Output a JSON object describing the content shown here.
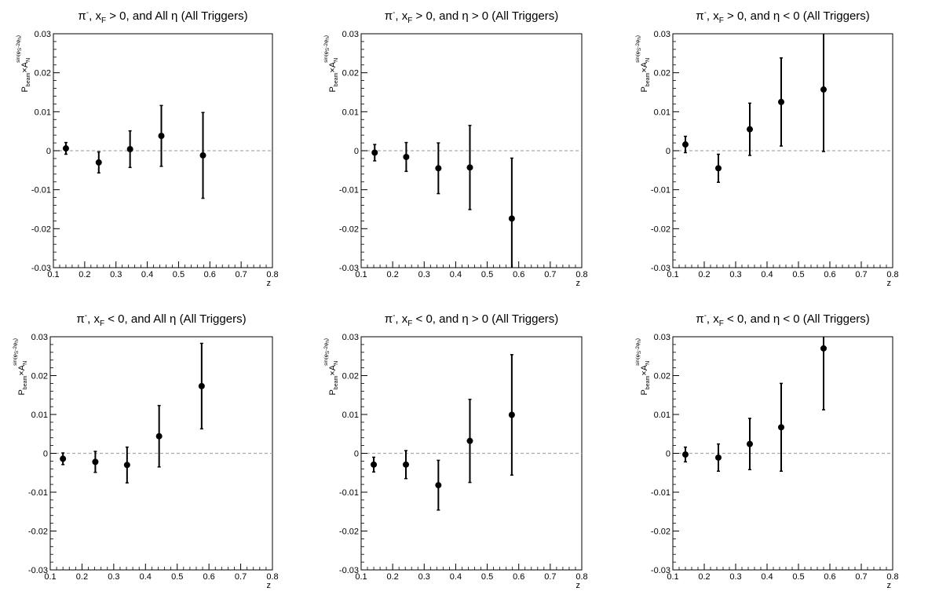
{
  "chart_data": [
    {
      "type": "scatter",
      "title_base": "π",
      "title_sup": "-",
      "title_mid": ", x",
      "title_sub": "F",
      "title_tail": " > 0, and All η (All Triggers)",
      "xlabel": "z",
      "ylabel": {
        "p": "P",
        "beam": "beam",
        "times": "×A",
        "n": "N",
        "sup": "sin(φ",
        "sup_s": "S",
        "sup_mid": "-2φ",
        "sup_h": "h",
        "sup_end": ")"
      },
      "xlim": [
        0.1,
        0.8
      ],
      "ylim": [
        -0.03,
        0.03
      ],
      "x_ticks": [
        "0.1",
        "0.2",
        "0.3",
        "0.4",
        "0.5",
        "0.6",
        "0.7",
        "0.8"
      ],
      "y_ticks": [
        "-0.03",
        "-0.02",
        "-0.01",
        "0",
        "0.01",
        "0.02",
        "0.03"
      ],
      "reference_line": 0,
      "x": [
        0.14,
        0.245,
        0.345,
        0.445,
        0.578
      ],
      "y": [
        0.0006,
        -0.003,
        0.0004,
        0.0038,
        -0.0012
      ],
      "yerr": [
        0.0015,
        0.0027,
        0.0047,
        0.0078,
        0.011
      ]
    },
    {
      "type": "scatter",
      "title_base": "π",
      "title_sup": "-",
      "title_mid": ", x",
      "title_sub": "F",
      "title_tail": " > 0, and η > 0 (All Triggers)",
      "xlabel": "z",
      "ylabel": {
        "p": "P",
        "beam": "beam",
        "times": "×A",
        "n": "N",
        "sup": "sin(φ",
        "sup_s": "S",
        "sup_mid": "-2φ",
        "sup_h": "h",
        "sup_end": ")"
      },
      "xlim": [
        0.1,
        0.8
      ],
      "ylim": [
        -0.03,
        0.03
      ],
      "x_ticks": [
        "0.1",
        "0.2",
        "0.3",
        "0.4",
        "0.5",
        "0.6",
        "0.7",
        "0.8"
      ],
      "y_ticks": [
        "-0.03",
        "-0.02",
        "-0.01",
        "0",
        "0.01",
        "0.02",
        "0.03"
      ],
      "reference_line": 0,
      "x": [
        0.143,
        0.243,
        0.345,
        0.445,
        0.578
      ],
      "y": [
        -0.0005,
        -0.0016,
        -0.0045,
        -0.0043,
        -0.0174
      ],
      "yerr": [
        0.0021,
        0.0037,
        0.0065,
        0.0108,
        0.0155
      ]
    },
    {
      "type": "scatter",
      "title_base": "π",
      "title_sup": "-",
      "title_mid": ", x",
      "title_sub": "F",
      "title_tail": " > 0, and η < 0 (All Triggers)",
      "xlabel": "z",
      "ylabel": {
        "p": "P",
        "beam": "beam",
        "times": "×A",
        "n": "N",
        "sup": "sin(φ",
        "sup_s": "S",
        "sup_mid": "-2φ",
        "sup_h": "h",
        "sup_end": ")"
      },
      "xlim": [
        0.1,
        0.8
      ],
      "ylim": [
        -0.03,
        0.03
      ],
      "x_ticks": [
        "0.1",
        "0.2",
        "0.3",
        "0.4",
        "0.5",
        "0.6",
        "0.7",
        "0.8"
      ],
      "y_ticks": [
        "-0.03",
        "-0.02",
        "-0.01",
        "0",
        "0.01",
        "0.02",
        "0.03"
      ],
      "reference_line": 0,
      "x": [
        0.14,
        0.245,
        0.345,
        0.445,
        0.58
      ],
      "y": [
        0.0016,
        -0.0045,
        0.0055,
        0.0125,
        0.0157
      ],
      "yerr": [
        0.0021,
        0.0036,
        0.0067,
        0.0113,
        0.0159
      ]
    },
    {
      "type": "scatter",
      "title_base": "π",
      "title_sup": "-",
      "title_mid": ", x",
      "title_sub": "F",
      "title_tail": " < 0, and All η (All Triggers)",
      "xlabel": "z",
      "ylabel": {
        "p": "P",
        "beam": "beam",
        "times": "×A",
        "n": "N",
        "sup": "sin(φ",
        "sup_s": "S",
        "sup_mid": "-2φ",
        "sup_h": "h",
        "sup_end": ")"
      },
      "xlim": [
        0.1,
        0.8
      ],
      "ylim": [
        -0.03,
        0.03
      ],
      "x_ticks": [
        "0.1",
        "0.2",
        "0.3",
        "0.4",
        "0.5",
        "0.6",
        "0.7",
        "0.8"
      ],
      "y_ticks": [
        "-0.03",
        "-0.02",
        "-0.01",
        "0",
        "0.01",
        "0.02",
        "0.03"
      ],
      "reference_line": 0,
      "x": [
        0.14,
        0.242,
        0.342,
        0.443,
        0.577
      ],
      "y": [
        -0.0014,
        -0.0022,
        -0.003,
        0.0044,
        0.0173
      ],
      "yerr": [
        0.0015,
        0.0027,
        0.0046,
        0.0079,
        0.011
      ]
    },
    {
      "type": "scatter",
      "title_base": "π",
      "title_sup": "-",
      "title_mid": ", x",
      "title_sub": "F",
      "title_tail": " < 0, and η > 0 (All Triggers)",
      "xlabel": "z",
      "ylabel": {
        "p": "P",
        "beam": "beam",
        "times": "×A",
        "n": "N",
        "sup": "sin(φ",
        "sup_s": "S",
        "sup_mid": "-2φ",
        "sup_h": "h",
        "sup_end": ")"
      },
      "xlim": [
        0.1,
        0.8
      ],
      "ylim": [
        -0.03,
        0.03
      ],
      "x_ticks": [
        "0.1",
        "0.2",
        "0.3",
        "0.4",
        "0.5",
        "0.6",
        "0.7",
        "0.8"
      ],
      "y_ticks": [
        "-0.03",
        "-0.02",
        "-0.01",
        "0",
        "0.01",
        "0.02",
        "0.03"
      ],
      "reference_line": 0,
      "x": [
        0.14,
        0.242,
        0.345,
        0.445,
        0.578
      ],
      "y": [
        -0.0029,
        -0.0029,
        -0.0082,
        0.0032,
        0.0099
      ],
      "yerr": [
        0.0019,
        0.0036,
        0.0064,
        0.0107,
        0.0155
      ]
    },
    {
      "type": "scatter",
      "title_base": "π",
      "title_sup": "-",
      "title_mid": ", x",
      "title_sub": "F",
      "title_tail": " < 0, and η < 0 (All Triggers)",
      "xlabel": "z",
      "ylabel": {
        "p": "P",
        "beam": "beam",
        "times": "×A",
        "n": "N",
        "sup": "sin(φ",
        "sup_s": "S",
        "sup_mid": "-2φ",
        "sup_h": "h",
        "sup_end": ")"
      },
      "xlim": [
        0.1,
        0.8
      ],
      "ylim": [
        -0.03,
        0.03
      ],
      "x_ticks": [
        "0.1",
        "0.2",
        "0.3",
        "0.4",
        "0.5",
        "0.6",
        "0.7",
        "0.8"
      ],
      "y_ticks": [
        "-0.03",
        "-0.02",
        "-0.01",
        "0",
        "0.01",
        "0.02",
        "0.03"
      ],
      "reference_line": 0,
      "x": [
        0.14,
        0.245,
        0.345,
        0.445,
        0.58
      ],
      "y": [
        -0.0003,
        -0.0011,
        0.0024,
        0.0067,
        0.027
      ],
      "yerr": [
        0.0019,
        0.0035,
        0.0066,
        0.0113,
        0.0158
      ]
    }
  ]
}
